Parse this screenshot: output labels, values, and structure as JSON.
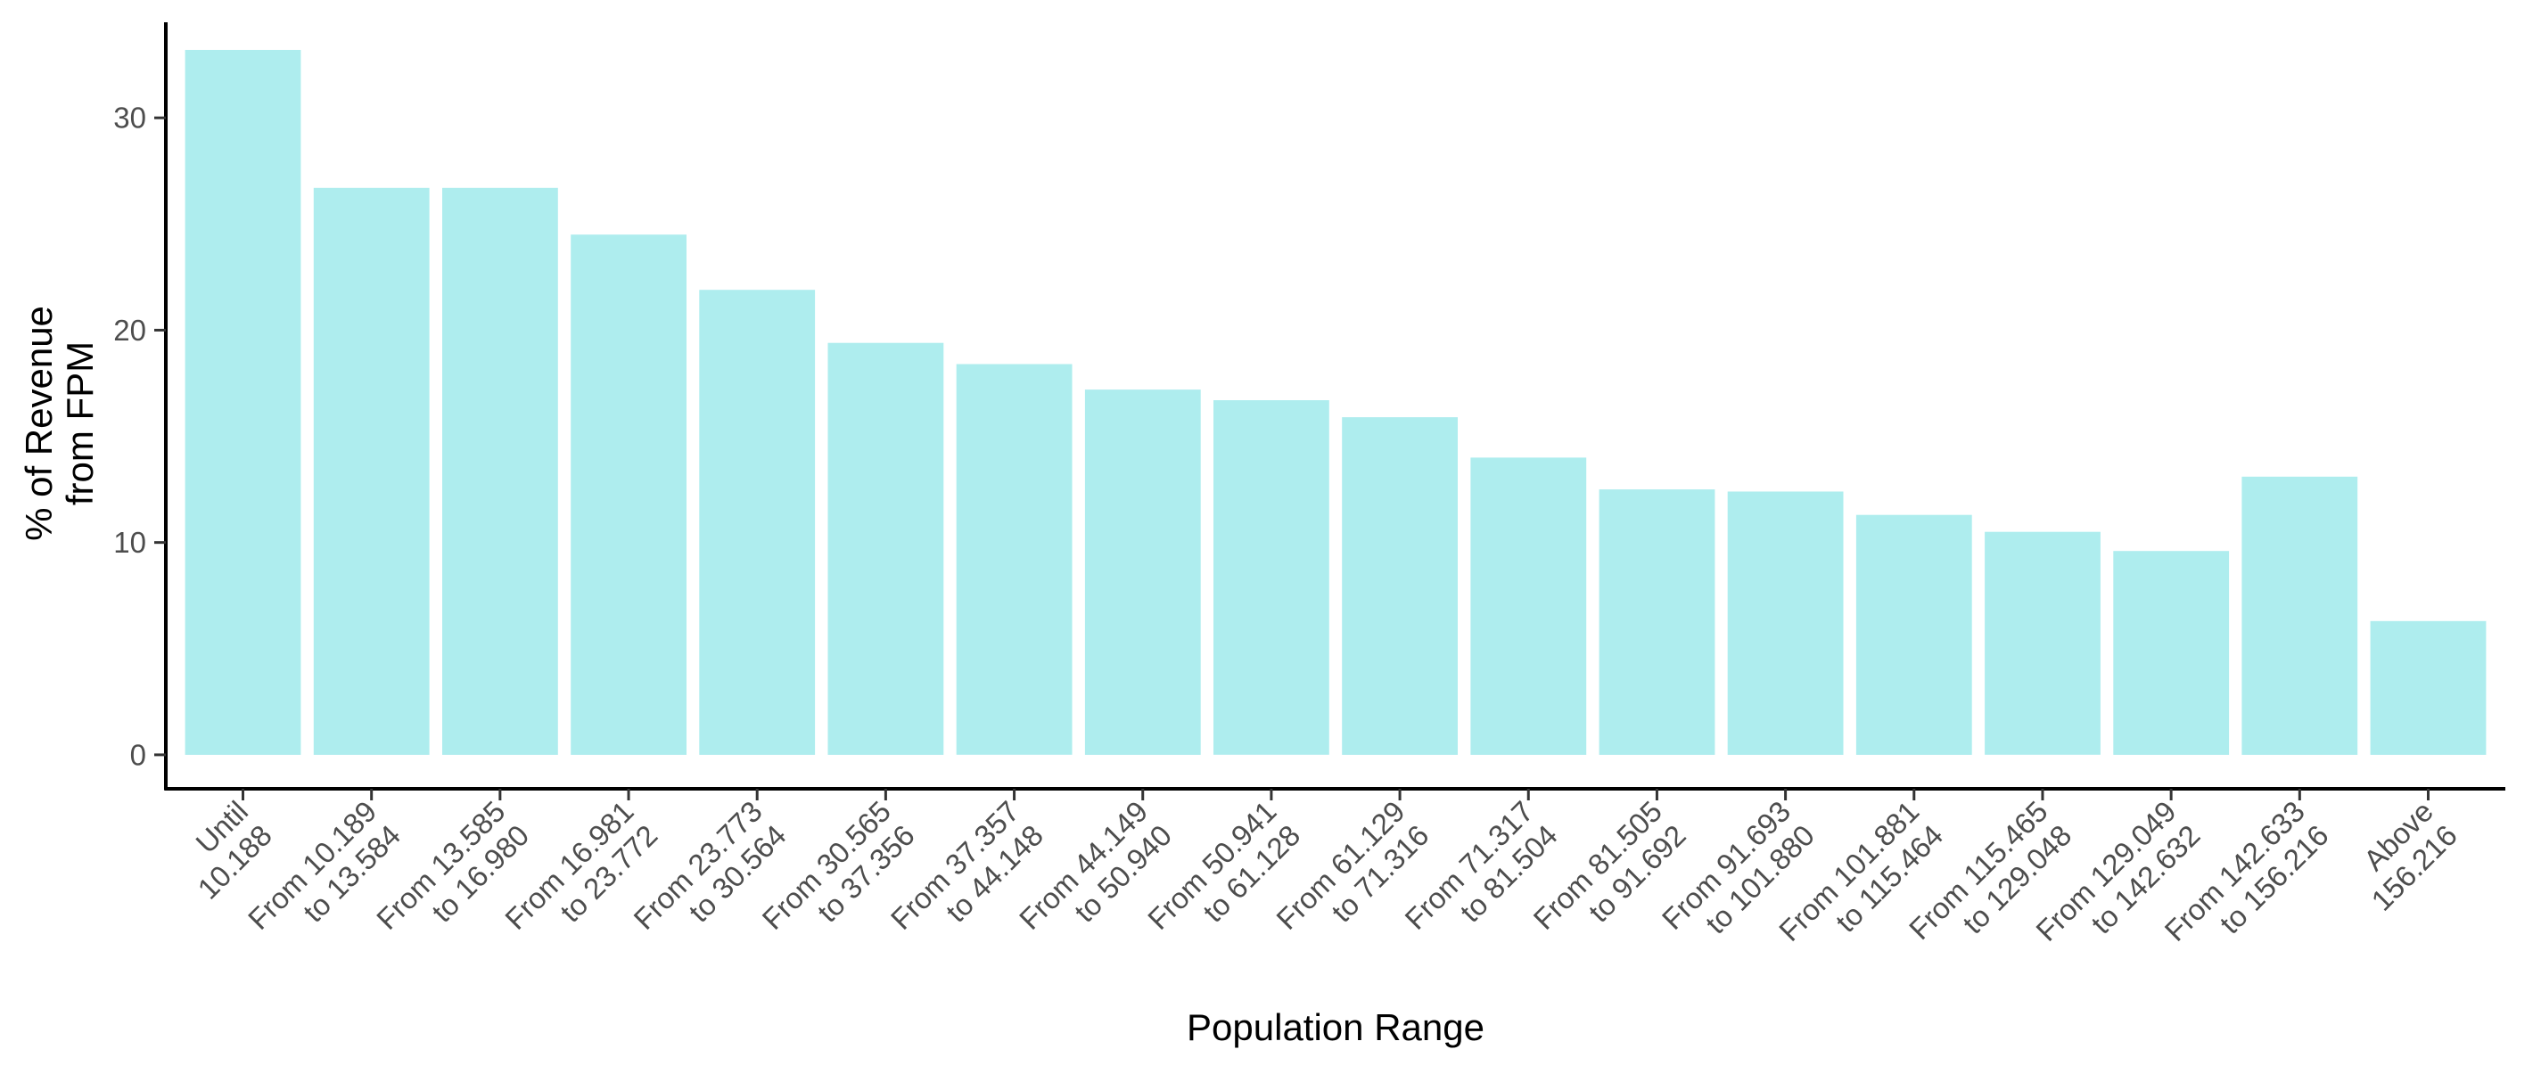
{
  "chart_data": {
    "type": "bar",
    "xlabel": "Population Range",
    "ylabel": "% of Revenue from FPM",
    "ylabel_lines": [
      "% of Revenue",
      "from FPM"
    ],
    "ylim": [
      -1.6,
      34.5
    ],
    "yticks": [
      0,
      10,
      20,
      30
    ],
    "grid": false,
    "bar_color": "#aeedee",
    "categories": [
      "Until 10.188",
      "From 10.189 to 13.584",
      "From 13.585 to 16.980",
      "From 16.981 to 23.772",
      "From 23.773 to 30.564",
      "From 30.565 to 37.356",
      "From 37.357 to 44.148",
      "From 44.149 to 50.940",
      "From 50.941 to 61.128",
      "From 61.129 to 71.316",
      "From 71.317 to 81.504",
      "From 81.505 to 91.692",
      "From 91.693 to 101.880",
      "From 101.881 to 115.464",
      "From 115.465 to 129.048",
      "From 129.049 to 142.632",
      "From 142.633 to 156.216",
      "Above 156.216"
    ],
    "category_lines": [
      [
        "Until",
        "10.188"
      ],
      [
        "From 10.189",
        "to 13.584"
      ],
      [
        "From 13.585",
        "to 16.980"
      ],
      [
        "From 16.981",
        "to 23.772"
      ],
      [
        "From 23.773",
        "to 30.564"
      ],
      [
        "From 30.565",
        "to 37.356"
      ],
      [
        "From 37.357",
        "to 44.148"
      ],
      [
        "From 44.149",
        "to 50.940"
      ],
      [
        "From 50.941",
        "to 61.128"
      ],
      [
        "From 61.129",
        "to 71.316"
      ],
      [
        "From 71.317",
        "to 81.504"
      ],
      [
        "From 81.505",
        "to 91.692"
      ],
      [
        "From 91.693",
        "to 101.880"
      ],
      [
        "From 101.881",
        "to 115.464"
      ],
      [
        "From 115.465",
        "to 129.048"
      ],
      [
        "From 129.049",
        "to 142.632"
      ],
      [
        "From 142.633",
        "to 156.216"
      ],
      [
        "Above",
        "156.216"
      ]
    ],
    "values": [
      33.2,
      26.7,
      26.7,
      24.5,
      21.9,
      19.4,
      18.4,
      17.2,
      16.7,
      15.9,
      14.0,
      12.5,
      12.4,
      11.3,
      10.5,
      9.6,
      13.1,
      6.3
    ]
  }
}
